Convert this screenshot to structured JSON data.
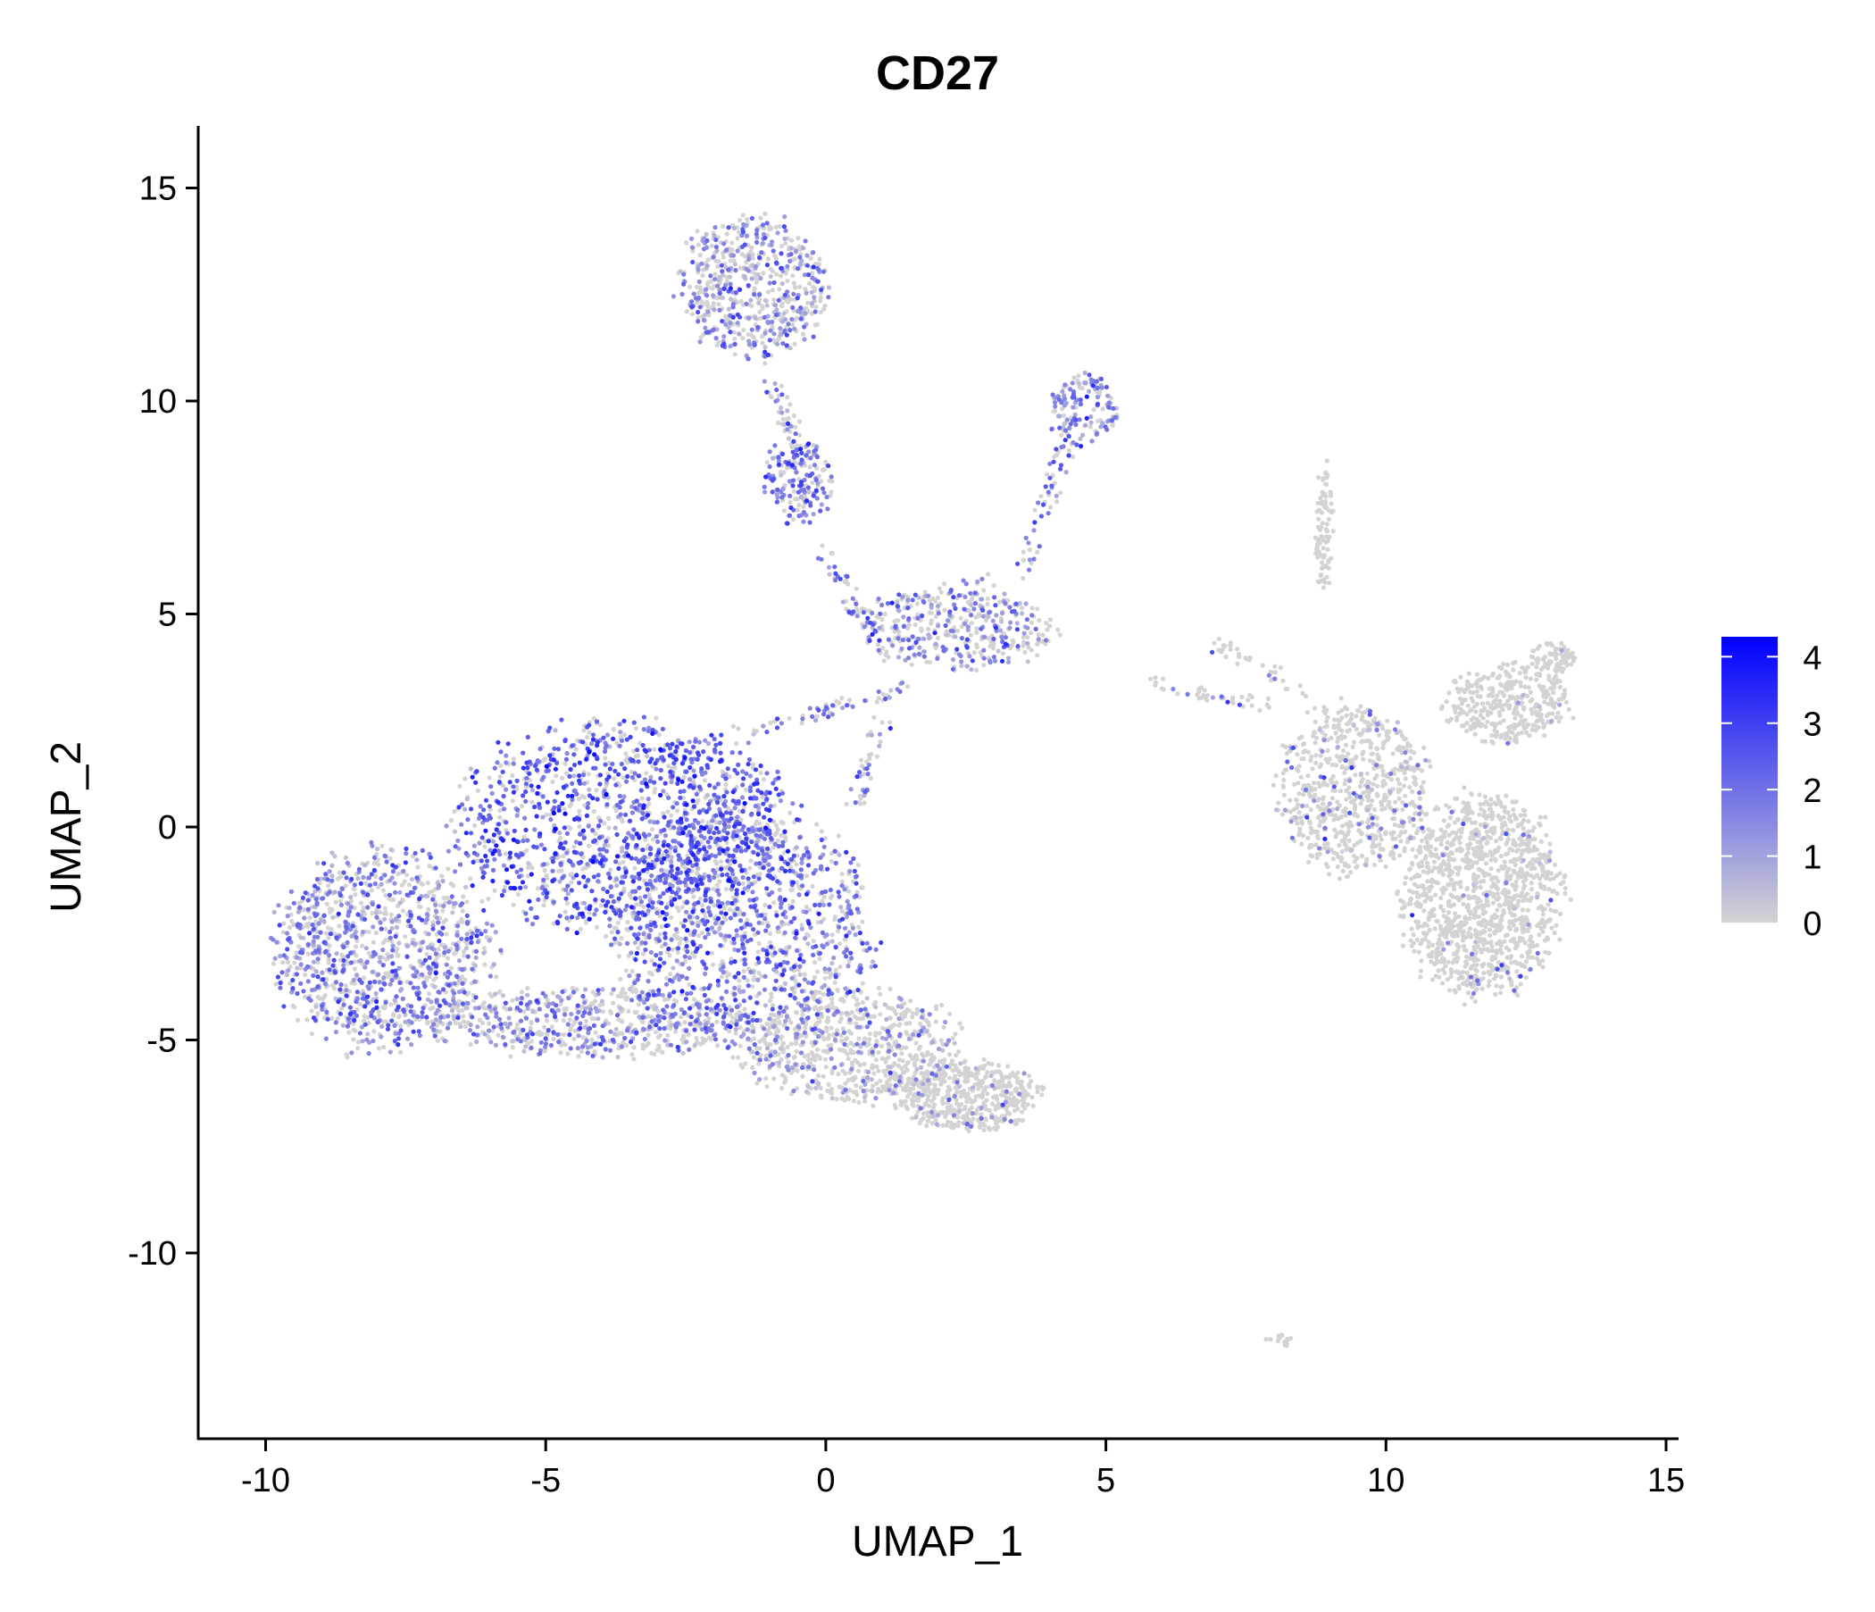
{
  "chart_data": {
    "type": "scatter",
    "title": "CD27",
    "xlabel": "UMAP_1",
    "ylabel": "UMAP_2",
    "xlim": [
      -11.2,
      15.2
    ],
    "ylim": [
      -14.3,
      16.4
    ],
    "xticks": [
      -10,
      -5,
      0,
      5,
      10,
      15
    ],
    "yticks": [
      -10,
      -5,
      0,
      5,
      10,
      15
    ],
    "xtick_labels": [
      "-10",
      "-5",
      "0",
      "5",
      "10",
      "15"
    ],
    "ytick_labels": [
      "-10",
      "-5",
      "0",
      "5",
      "10",
      "15"
    ],
    "grid": false,
    "legend": {
      "position": "right",
      "type": "colorbar",
      "min": 0,
      "max": 4.3,
      "ticks": [
        4,
        3,
        2,
        1,
        0
      ],
      "tick_labels": [
        "4",
        "3",
        "2",
        "1",
        "0"
      ],
      "low_color": "#D3D3D3",
      "high_color": "#0000FF"
    },
    "clusters": [
      {
        "name": "left-lobe",
        "cx": -7.9,
        "cy": -2.9,
        "rx": 1.9,
        "ry": 2.3,
        "n": 1100,
        "p_expr": 0.55,
        "mean_expr": 1.6
      },
      {
        "name": "upper-middle",
        "cx": -3.6,
        "cy": 0.0,
        "rx": 2.9,
        "ry": 2.4,
        "n": 1400,
        "p_expr": 0.7,
        "mean_expr": 2.3
      },
      {
        "name": "center",
        "cx": -1.5,
        "cy": -2.2,
        "rx": 2.3,
        "ry": 2.6,
        "n": 1100,
        "p_expr": 0.6,
        "mean_expr": 2.0
      },
      {
        "name": "bottom-band",
        "cx": -4.2,
        "cy": -4.6,
        "rx": 3.0,
        "ry": 0.8,
        "n": 600,
        "p_expr": 0.45,
        "mean_expr": 1.5
      },
      {
        "name": "lower-tail",
        "cx": 0.4,
        "cy": -5.1,
        "rx": 1.9,
        "ry": 1.3,
        "n": 700,
        "p_expr": 0.2,
        "mean_expr": 1.4
      },
      {
        "name": "tail-tip",
        "cx": 2.5,
        "cy": -6.3,
        "rx": 1.3,
        "ry": 0.8,
        "n": 500,
        "p_expr": 0.08,
        "mean_expr": 1.2
      },
      {
        "name": "top-cluster",
        "cx": -1.3,
        "cy": 12.7,
        "rx": 1.3,
        "ry": 1.6,
        "n": 600,
        "p_expr": 0.5,
        "mean_expr": 1.5
      },
      {
        "name": "small-upper",
        "cx": -0.5,
        "cy": 8.1,
        "rx": 0.6,
        "ry": 1.0,
        "n": 180,
        "p_expr": 0.6,
        "mean_expr": 2.0
      },
      {
        "name": "diagonal-arm",
        "cx": 4.6,
        "cy": 9.8,
        "rx": 0.6,
        "ry": 0.8,
        "n": 150,
        "p_expr": 0.6,
        "mean_expr": 1.7
      },
      {
        "name": "mid-hub",
        "cx": 2.4,
        "cy": 4.6,
        "rx": 1.6,
        "ry": 0.9,
        "n": 350,
        "p_expr": 0.5,
        "mean_expr": 1.6
      },
      {
        "name": "right-main",
        "cx": 11.7,
        "cy": -1.6,
        "rx": 1.4,
        "ry": 2.3,
        "n": 1200,
        "p_expr": 0.04,
        "mean_expr": 1.3
      },
      {
        "name": "right-left",
        "cx": 9.4,
        "cy": 0.9,
        "rx": 1.3,
        "ry": 1.9,
        "n": 700,
        "p_expr": 0.1,
        "mean_expr": 1.4
      },
      {
        "name": "right-arm",
        "cx": 12.2,
        "cy": 2.9,
        "rx": 1.1,
        "ry": 0.9,
        "n": 350,
        "p_expr": 0.02,
        "mean_expr": 1.2
      },
      {
        "name": "right-arm-tip",
        "cx": 13.0,
        "cy": 4.0,
        "rx": 0.45,
        "ry": 0.35,
        "n": 80,
        "p_expr": 0.02,
        "mean_expr": 1.2
      },
      {
        "name": "right-stalk",
        "cx": 8.9,
        "cy": 7.0,
        "rx": 0.15,
        "ry": 1.6,
        "n": 90,
        "p_expr": 0.0,
        "mean_expr": 0
      },
      {
        "name": "far-outlier",
        "cx": 8.1,
        "cy": -12.05,
        "rx": 0.3,
        "ry": 0.15,
        "n": 15,
        "p_expr": 0.0,
        "mean_expr": 0
      }
    ],
    "strands": [
      {
        "from": [
          -1.0,
          10.5
        ],
        "to": [
          -0.5,
          9.0
        ],
        "n": 40,
        "p_expr": 0.4
      },
      {
        "from": [
          0.0,
          6.5
        ],
        "to": [
          1.0,
          4.0
        ],
        "n": 50,
        "p_expr": 0.6
      },
      {
        "from": [
          -1.5,
          2.2
        ],
        "to": [
          1.5,
          3.3
        ],
        "n": 60,
        "p_expr": 0.6
      },
      {
        "from": [
          3.5,
          6.0
        ],
        "to": [
          4.3,
          9.0
        ],
        "n": 50,
        "p_expr": 0.6
      },
      {
        "from": [
          0.5,
          5.0
        ],
        "to": [
          3.0,
          5.8
        ],
        "n": 40,
        "p_expr": 0.5
      },
      {
        "from": [
          0.5,
          0.5
        ],
        "to": [
          1.0,
          2.5
        ],
        "n": 40,
        "p_expr": 0.5
      },
      {
        "from": [
          7.0,
          4.3
        ],
        "to": [
          8.5,
          3.2
        ],
        "n": 40,
        "p_expr": 0.1
      },
      {
        "from": [
          5.8,
          3.4
        ],
        "to": [
          8.0,
          2.8
        ],
        "n": 40,
        "p_expr": 0.1
      }
    ]
  }
}
